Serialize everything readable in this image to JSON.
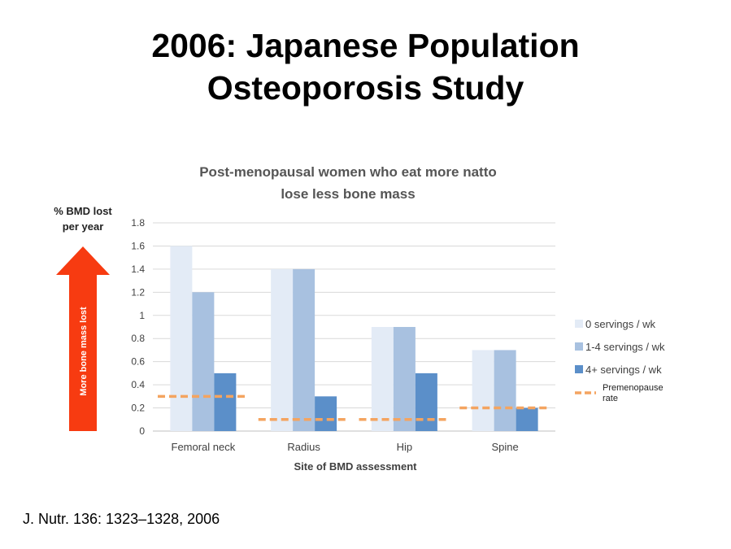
{
  "slide": {
    "title_line1": "2006: Japanese Population",
    "title_line2": "Osteoporosis Study",
    "citation": "J. Nutr. 136: 1323–1328, 2006"
  },
  "annotation": {
    "ylabel_line1": "% BMD lost",
    "ylabel_line2": "per year",
    "arrow_label": "More bone mass lost",
    "arrow_color": "#f73b11"
  },
  "chart_data": {
    "type": "bar",
    "title_line1": "Post-menopausal women who eat more natto",
    "title_line2": "lose less bone mass",
    "xlabel": "Site of BMD assessment",
    "ylabel": "% BMD lost per year",
    "categories": [
      "Femoral neck",
      "Radius",
      "Hip",
      "Spine"
    ],
    "ylim": [
      0,
      1.8
    ],
    "yticks": [
      "0",
      "0.2",
      "0.4",
      "0.6",
      "0.8",
      "1",
      "1.2",
      "1.4",
      "1.6",
      "1.8"
    ],
    "grid": true,
    "legend_position": "right",
    "series": [
      {
        "name": "0 servings / wk",
        "color": "#e3ebf6",
        "values": [
          1.6,
          1.4,
          0.9,
          0.7
        ]
      },
      {
        "name": "1-4 servings / wk",
        "color": "#a8c1e0",
        "values": [
          1.2,
          1.4,
          0.9,
          0.7
        ]
      },
      {
        "name": "4+ servings / wk",
        "color": "#5b8fc9",
        "values": [
          0.5,
          0.3,
          0.5,
          0.2
        ]
      }
    ],
    "reference": {
      "name_line1": "Premenopause",
      "name_line2": "rate",
      "color": "#f4a460",
      "style": "dashed",
      "values": [
        0.3,
        0.1,
        0.1,
        0.2
      ]
    }
  }
}
